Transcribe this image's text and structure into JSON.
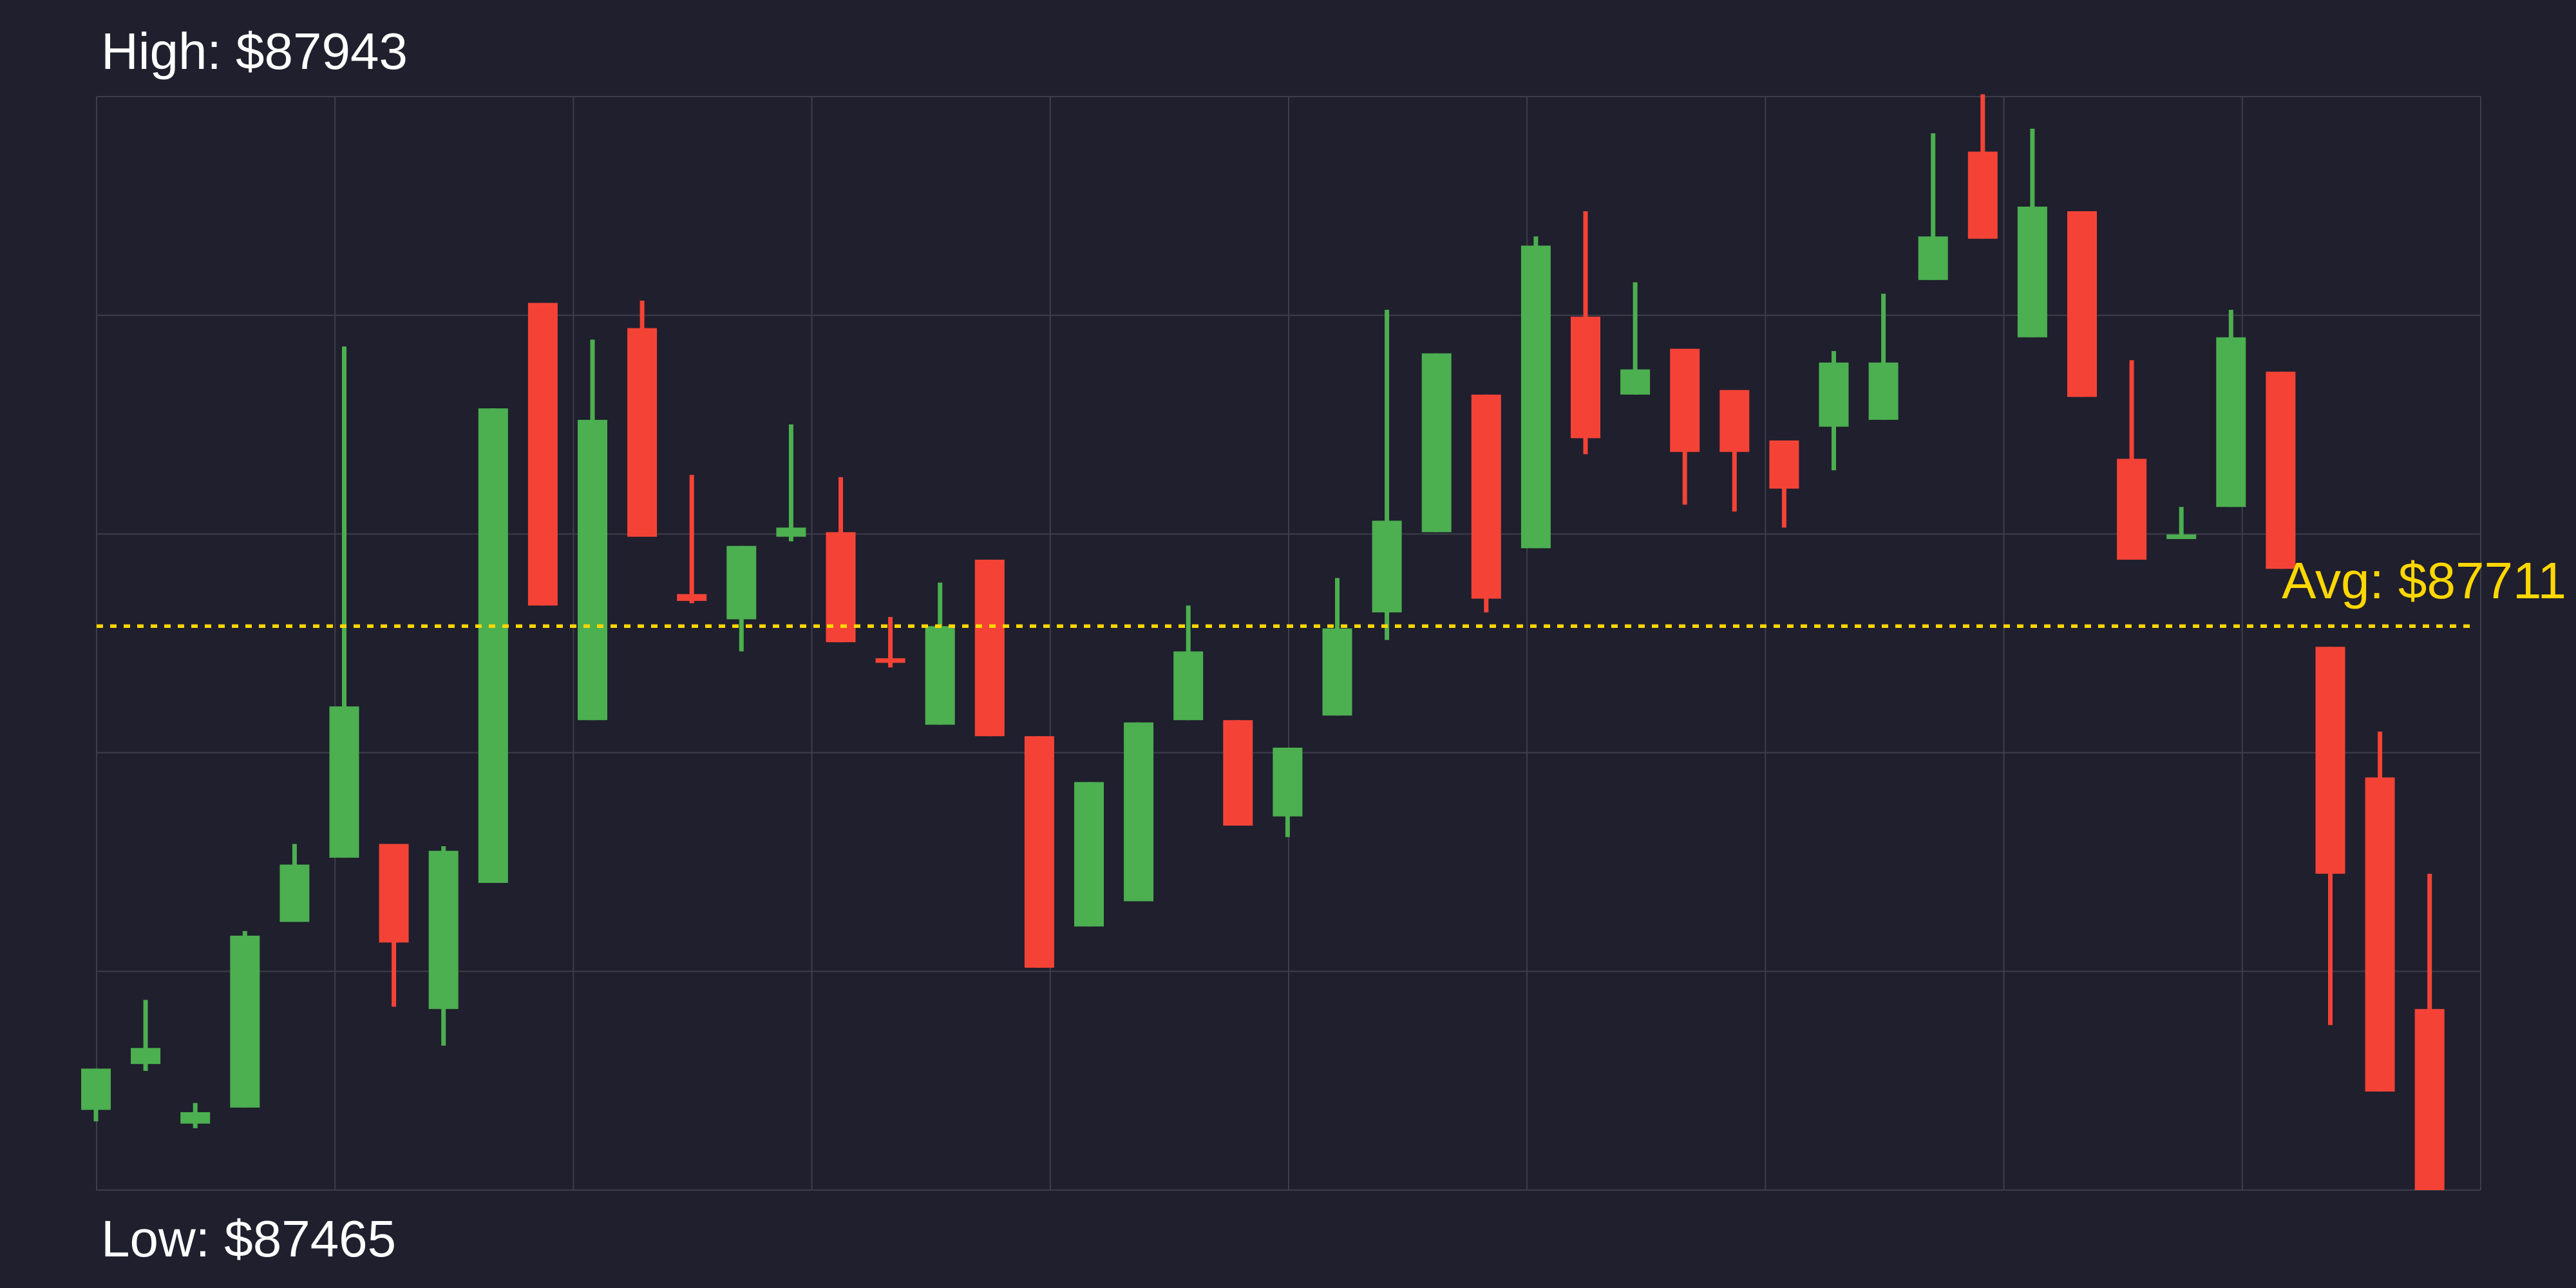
{
  "labels": {
    "high": "High: $87943",
    "low": "Low: $87465",
    "avg": "Avg: $87711"
  },
  "stats": {
    "high_usd": 87943,
    "low_usd": 87465,
    "avg_usd": 87711
  },
  "colors": {
    "background": "#1f1f2d",
    "grid": "#3e3e4a",
    "bullish": "#4caf50",
    "bearish": "#f44336",
    "avg_line": "#ffd700",
    "label_text": "#ffffff"
  },
  "chart_data": {
    "type": "candlestick",
    "title": "",
    "xlabel": "",
    "ylabel": "",
    "num_candles": 48,
    "ylim": [
      87465,
      87942
    ],
    "grid": {
      "visible": true,
      "v_lines": 11,
      "h_lines": 6,
      "x_tick_labels": [],
      "y_tick_labels": []
    },
    "legend": "none",
    "avg_line": {
      "value": 87711,
      "style": "dotted",
      "color": "#ffd700",
      "label": "Avg: $87711",
      "label_position": "right-above-line"
    },
    "annotations": [
      {
        "name": "high-label",
        "text": "High: $87943",
        "position": "top-left",
        "color": "#ffffff"
      },
      {
        "name": "low-label",
        "text": "Low: $87465",
        "position": "bottom-left",
        "color": "#ffffff"
      },
      {
        "name": "avg-label",
        "text": "Avg: $87711",
        "position": "right-of-avg-line",
        "color": "#ffd700"
      }
    ],
    "candle_format": [
      "open",
      "high",
      "low",
      "close"
    ],
    "up_color": "#4caf50",
    "down_color": "#f44336",
    "candles": [
      [
        87500,
        87518,
        87495,
        87518
      ],
      [
        87520,
        87548,
        87517,
        87527
      ],
      [
        87494,
        87503,
        87492,
        87499
      ],
      [
        87501,
        87578,
        87501,
        87576
      ],
      [
        87582,
        87616,
        87582,
        87607
      ],
      [
        87610,
        87833,
        87610,
        87676
      ],
      [
        87616,
        87616,
        87545,
        87573
      ],
      [
        87544,
        87615,
        87528,
        87613
      ],
      [
        87599,
        87806,
        87599,
        87806
      ],
      [
        87852,
        87852,
        87720,
        87720
      ],
      [
        87670,
        87836,
        87670,
        87801
      ],
      [
        87841,
        87853,
        87750,
        87750
      ],
      [
        87725,
        87777,
        87721,
        87722
      ],
      [
        87714,
        87746,
        87700,
        87746
      ],
      [
        87750,
        87799,
        87748,
        87754
      ],
      [
        87752,
        87776,
        87704,
        87704
      ],
      [
        87697,
        87715,
        87693,
        87695
      ],
      [
        87668,
        87730,
        87668,
        87711
      ],
      [
        87740,
        87740,
        87663,
        87663
      ],
      [
        87663,
        87663,
        87562,
        87562
      ],
      [
        87580,
        87643,
        87580,
        87643
      ],
      [
        87591,
        87669,
        87591,
        87669
      ],
      [
        87670,
        87720,
        87670,
        87700
      ],
      [
        87670,
        87670,
        87624,
        87624
      ],
      [
        87628,
        87658,
        87619,
        87658
      ],
      [
        87672,
        87732,
        87672,
        87710
      ],
      [
        87717,
        87849,
        87705,
        87757
      ],
      [
        87752,
        87830,
        87752,
        87830
      ],
      [
        87812,
        87812,
        87717,
        87723
      ],
      [
        87745,
        87881,
        87745,
        87877
      ],
      [
        87846,
        87892,
        87786,
        87793
      ],
      [
        87812,
        87861,
        87812,
        87823
      ],
      [
        87832,
        87832,
        87764,
        87787
      ],
      [
        87814,
        87814,
        87761,
        87787
      ],
      [
        87792,
        87792,
        87754,
        87771
      ],
      [
        87798,
        87831,
        87779,
        87826
      ],
      [
        87801,
        87856,
        87801,
        87826
      ],
      [
        87862,
        87926,
        87862,
        87881
      ],
      [
        87918,
        87943,
        87880,
        87880
      ],
      [
        87837,
        87928,
        87837,
        87894
      ],
      [
        87892,
        87892,
        87811,
        87811
      ],
      [
        87784,
        87827,
        87740,
        87740
      ],
      [
        87749,
        87763,
        87749,
        87751
      ],
      [
        87763,
        87849,
        87763,
        87837
      ],
      [
        87822,
        87822,
        87736,
        87736
      ],
      [
        87702,
        87702,
        87537,
        87603
      ],
      [
        87645,
        87665,
        87508,
        87508
      ],
      [
        87544,
        87603,
        87465,
        87465
      ]
    ]
  }
}
